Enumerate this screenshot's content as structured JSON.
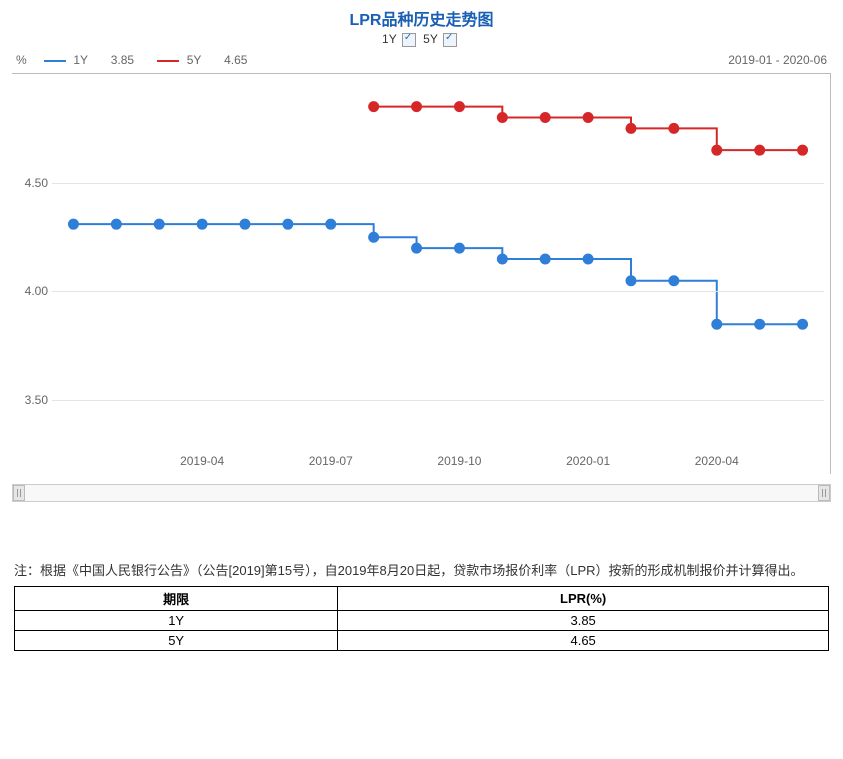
{
  "title": "LPR品种历史走势图",
  "checkboxes": {
    "y1_label": "1Y",
    "y5_label": "5Y",
    "y1_checked": true,
    "y5_checked": true
  },
  "legend": {
    "unit": "%",
    "series1_name": "1Y",
    "series1_value": "3.85",
    "series1_color": "#2f7ed8",
    "series5_name": "5Y",
    "series5_value": "4.65",
    "series5_color": "#d62728",
    "date_range": "2019-01 - 2020-06"
  },
  "chart": {
    "type": "line",
    "background_color": "#ffffff",
    "grid_color": "#e4e4e4",
    "border_color": "#bbbbbb",
    "y": {
      "min": 3.3,
      "max": 5.0,
      "ticks": [
        3.5,
        4.0,
        4.5
      ]
    },
    "x": {
      "categories": [
        "2019-01",
        "2019-02",
        "2019-03",
        "2019-04",
        "2019-05",
        "2019-06",
        "2019-07",
        "2019-08",
        "2019-09",
        "2019-10",
        "2019-11",
        "2019-12",
        "2020-01",
        "2020-02",
        "2020-03",
        "2020-04",
        "2020-05",
        "2020-06"
      ],
      "tick_labels": [
        "2019-04",
        "2019-07",
        "2019-10",
        "2020-01",
        "2020-04"
      ],
      "tick_indices": [
        3,
        6,
        9,
        12,
        15
      ]
    },
    "marker_radius": 5,
    "line_width": 2,
    "series": [
      {
        "name": "1Y",
        "color": "#2f7ed8",
        "data": [
          4.31,
          4.31,
          4.31,
          4.31,
          4.31,
          4.31,
          4.31,
          4.25,
          4.2,
          4.2,
          4.15,
          4.15,
          4.15,
          4.05,
          4.05,
          3.85,
          3.85,
          3.85
        ]
      },
      {
        "name": "5Y",
        "color": "#d62728",
        "data": [
          null,
          null,
          null,
          null,
          null,
          null,
          null,
          4.85,
          4.85,
          4.85,
          4.8,
          4.8,
          4.8,
          4.75,
          4.75,
          4.65,
          4.65,
          4.65
        ]
      }
    ]
  },
  "note": "注：根据《中国人民银行公告》（公告[2019]第15号），自2019年8月20日起，贷款市场报价利率（LPR）按新的形成机制报价并计算得出。",
  "table": {
    "headers": [
      "期限",
      "LPR(%)"
    ],
    "rows": [
      [
        "1Y",
        "3.85"
      ],
      [
        "5Y",
        "4.65"
      ]
    ]
  }
}
